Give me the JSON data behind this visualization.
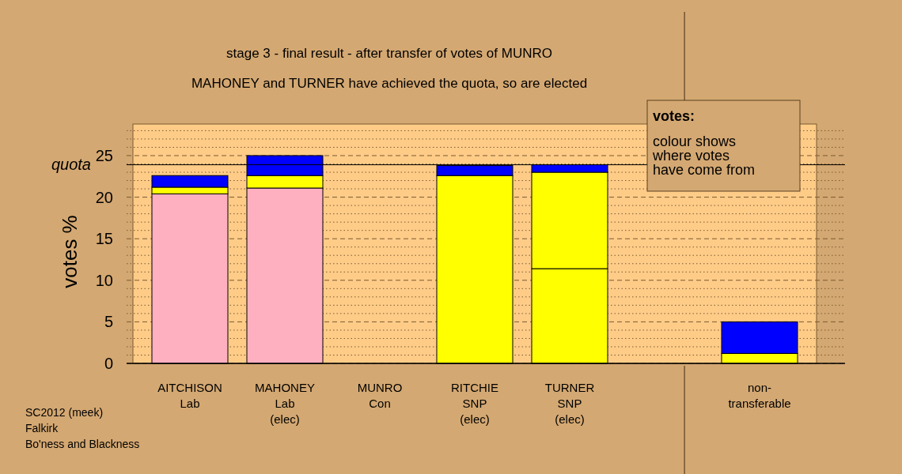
{
  "chart_data": {
    "type": "bar",
    "stacked": true,
    "title": "stage 3 - final result - after transfer of votes of MUNRO",
    "subtitle": "MAHONEY and TURNER have achieved the quota, so are elected",
    "ylabel": "votes %",
    "categories": [
      "AITCHISON\nLab",
      "MAHONEY\nLab\n(elec)",
      "MUNRO\nCon",
      "RITCHIE\nSNP\n(elec)",
      "TURNER\nSNP\n(elec)",
      null,
      "non-\ntransferable"
    ],
    "series": [
      {
        "color": "#ffb0c0",
        "values": [
          20.4,
          21.1,
          0,
          0,
          0,
          0,
          0
        ]
      },
      {
        "color": "#ffff00",
        "values": [
          0.8,
          1.5,
          0,
          22.6,
          11.4,
          0,
          1.2
        ]
      },
      {
        "color": "#ffff00",
        "values": [
          0,
          0,
          0,
          0,
          11.6,
          0,
          0
        ]
      },
      {
        "color": "#0000ff",
        "values": [
          1.4,
          2.4,
          0,
          1.2,
          0.9,
          0,
          3.8
        ]
      }
    ],
    "ylim": [
      0,
      28.8
    ],
    "yticks": [
      0,
      {
        "value": 1,
        "label": null
      },
      {
        "value": 2,
        "label": null
      },
      {
        "value": 3,
        "label": null
      },
      {
        "value": 4,
        "label": null
      },
      5,
      {
        "value": 6,
        "label": null
      },
      {
        "value": 7,
        "label": null
      },
      {
        "value": 8,
        "label": null
      },
      {
        "value": 9,
        "label": null
      },
      10,
      {
        "value": 11,
        "label": null
      },
      {
        "value": 12,
        "label": null
      },
      {
        "value": 13,
        "label": null
      },
      {
        "value": 14,
        "label": null
      },
      15,
      {
        "value": 16,
        "label": null
      },
      {
        "value": 17,
        "label": null
      },
      {
        "value": 18,
        "label": null
      },
      {
        "value": 19,
        "label": null
      },
      20,
      {
        "value": 21,
        "label": null
      },
      {
        "value": 22,
        "label": null
      },
      {
        "value": 23,
        "label": null
      },
      {
        "value": 24,
        "label": null
      },
      25,
      {
        "value": 26,
        "label": null
      },
      {
        "value": 27,
        "label": null
      },
      {
        "value": 28,
        "label": null
      }
    ],
    "grid": "y",
    "ref_lines": [
      {
        "axis": "y",
        "value": 23.9,
        "label": "quota"
      }
    ],
    "annotations": [
      "votes:",
      "colour shows\nwhere votes\nhave come from",
      "SC2012 (meek)\nFalkirk\nBo'ness and Blackness"
    ]
  }
}
